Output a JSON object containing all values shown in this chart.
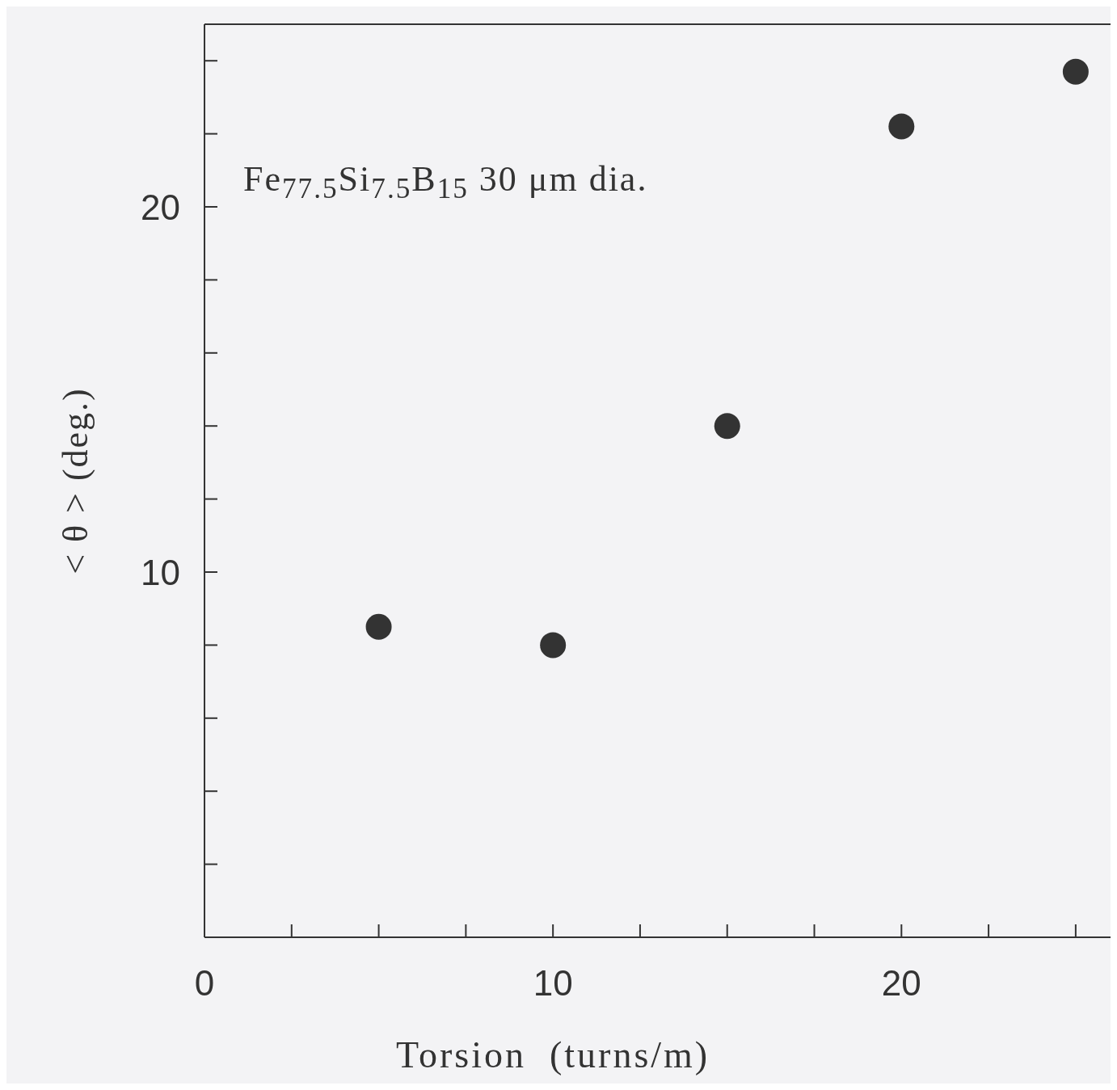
{
  "chart_data": {
    "type": "scatter",
    "xlabel": "Torsion  (turns/m)",
    "ylabel": "< θ > (deg.)",
    "annotations": [
      "Fe$_{77.5}$Si$_{7.5}$B$_{15}$ 30 μm dia."
    ],
    "x": [
      5,
      10,
      15,
      20,
      25
    ],
    "series": [
      {
        "color": "#333333",
        "values": [
          8.5,
          8.0,
          14.0,
          22.2,
          23.7
        ]
      }
    ],
    "marker": "circle",
    "grid": false,
    "xlim": [
      0,
      26
    ],
    "ylim": [
      0,
      25
    ],
    "xticks": [
      0,
      {
        "value": 2.5,
        "label": null
      },
      {
        "value": 5,
        "label": null
      },
      {
        "value": 7.5,
        "label": null
      },
      10,
      {
        "value": 12.5,
        "label": null
      },
      {
        "value": 15,
        "label": null
      },
      {
        "value": 17.5,
        "label": null
      },
      20,
      {
        "value": 22.5,
        "label": null
      },
      {
        "value": 25,
        "label": null
      }
    ],
    "yticks": [
      {
        "value": 2,
        "label": null
      },
      {
        "value": 4,
        "label": null
      },
      {
        "value": 6,
        "label": null
      },
      {
        "value": 8,
        "label": null
      },
      10,
      {
        "value": 12,
        "label": null
      },
      {
        "value": 14,
        "label": null
      },
      {
        "value": 16,
        "label": null
      },
      {
        "value": 18,
        "label": null
      },
      20,
      {
        "value": 22,
        "label": null
      },
      {
        "value": 24,
        "label": null
      }
    ]
  }
}
